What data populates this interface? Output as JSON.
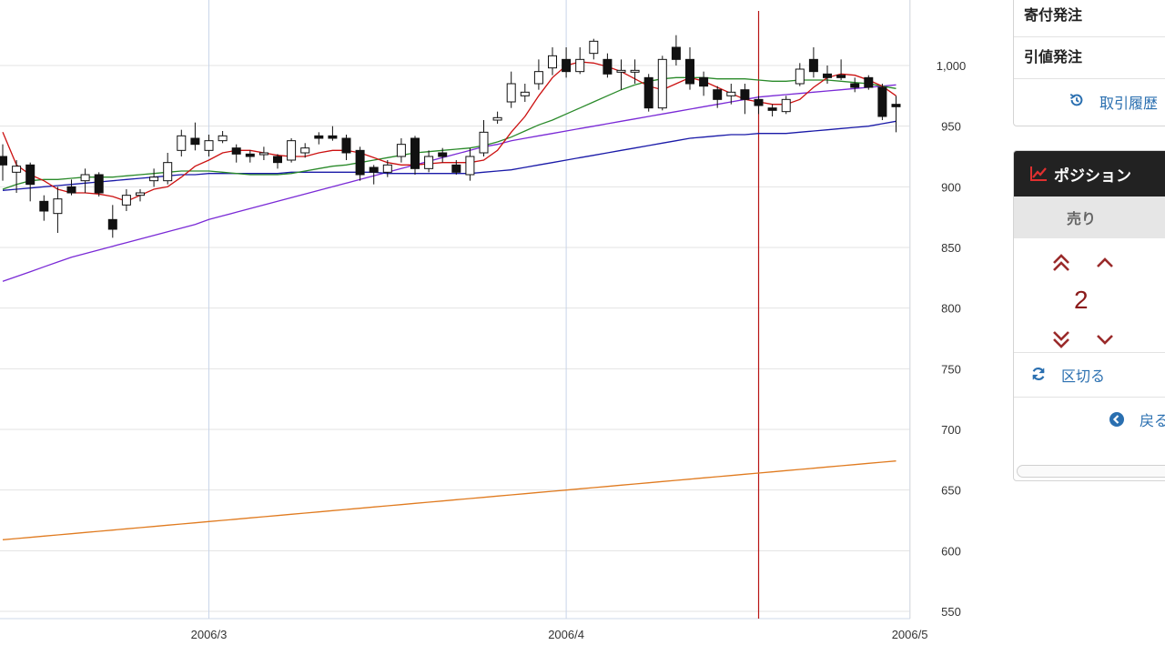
{
  "chart_data": {
    "type": "candlestick",
    "x_tick_labels": [
      "2006/3",
      "2006/4",
      "2006/5"
    ],
    "x_tick_index": [
      15,
      41,
      66
    ],
    "y_ticks": [
      550,
      600,
      650,
      700,
      750,
      800,
      850,
      900,
      950,
      "1,000"
    ],
    "ylim": [
      545,
      1050
    ],
    "grid": true,
    "colors": {
      "ma_short": "#cc1111",
      "ma_mid": "#2a8a2a",
      "ma_long": "#1a1aa8",
      "ma_longer": "#7a2ad6",
      "ma_longest": "#e07b20",
      "cursor_line": "#b81414"
    },
    "cursor_index": 55,
    "candles": [
      [
        925,
        918,
        935,
        905
      ],
      [
        912,
        917,
        922,
        895
      ],
      [
        918,
        902,
        920,
        888
      ],
      [
        888,
        880,
        893,
        872
      ],
      [
        878,
        890,
        900,
        862
      ],
      [
        900,
        895,
        906,
        893
      ],
      [
        905,
        910,
        915,
        895
      ],
      [
        910,
        895,
        912,
        892
      ],
      [
        873,
        865,
        885,
        858
      ],
      [
        885,
        893,
        898,
        880
      ],
      [
        893,
        895,
        898,
        888
      ],
      [
        905,
        908,
        915,
        900
      ],
      [
        905,
        920,
        928,
        902
      ],
      [
        930,
        942,
        947,
        925
      ],
      [
        940,
        935,
        953,
        930
      ],
      [
        930,
        938,
        943,
        925
      ],
      [
        938,
        942,
        946,
        936
      ],
      [
        932,
        927,
        935,
        920
      ],
      [
        927,
        925,
        930,
        920
      ],
      [
        927,
        928,
        933,
        922
      ],
      [
        925,
        920,
        927,
        915
      ],
      [
        922,
        938,
        940,
        920
      ],
      [
        928,
        932,
        936,
        924
      ],
      [
        942,
        940,
        945,
        935
      ],
      [
        942,
        940,
        950,
        938
      ],
      [
        940,
        928,
        943,
        922
      ],
      [
        930,
        910,
        933,
        905
      ],
      [
        916,
        912,
        918,
        902
      ],
      [
        912,
        918,
        922,
        908
      ],
      [
        925,
        935,
        940,
        920
      ],
      [
        940,
        915,
        942,
        910
      ],
      [
        915,
        925,
        930,
        912
      ],
      [
        928,
        925,
        932,
        920
      ],
      [
        918,
        912,
        922,
        910
      ],
      [
        910,
        925,
        932,
        905
      ],
      [
        928,
        945,
        955,
        925
      ],
      [
        955,
        957,
        962,
        952
      ],
      [
        970,
        985,
        995,
        965
      ],
      [
        975,
        978,
        985,
        970
      ],
      [
        985,
        995,
        1005,
        980
      ],
      [
        998,
        1008,
        1015,
        992
      ],
      [
        1005,
        995,
        1015,
        990
      ],
      [
        995,
        1005,
        1015,
        993
      ],
      [
        1010,
        1020,
        1022,
        1005
      ],
      [
        1005,
        993,
        1010,
        990
      ],
      [
        996,
        996,
        1005,
        980
      ],
      [
        996,
        996,
        1005,
        985
      ],
      [
        990,
        965,
        993,
        962
      ],
      [
        965,
        1005,
        1008,
        963
      ],
      [
        1015,
        1005,
        1025,
        1000
      ],
      [
        1005,
        985,
        1015,
        980
      ],
      [
        990,
        983,
        995,
        975
      ],
      [
        980,
        972,
        983,
        965
      ],
      [
        975,
        978,
        985,
        968
      ],
      [
        980,
        972,
        985,
        960
      ],
      [
        972,
        967,
        975,
        960
      ],
      [
        965,
        963,
        968,
        958
      ],
      [
        962,
        972,
        975,
        960
      ],
      [
        985,
        997,
        1002,
        983
      ],
      [
        1005,
        995,
        1015,
        990
      ],
      [
        993,
        990,
        1000,
        985
      ],
      [
        992,
        990,
        1005,
        988
      ],
      [
        985,
        982,
        990,
        978
      ],
      [
        990,
        982,
        992,
        980
      ],
      [
        982,
        958,
        985,
        955
      ],
      [
        968,
        966,
        975,
        945
      ]
    ],
    "series": [
      {
        "values": [
          945,
          918,
          910,
          905,
          898,
          895,
          895,
          894,
          892,
          888,
          893,
          898,
          900,
          908,
          917,
          922,
          928,
          930,
          930,
          928,
          926,
          925,
          925,
          928,
          930,
          930,
          928,
          924,
          920,
          918,
          918,
          919,
          920,
          920,
          920,
          922,
          930,
          945,
          958,
          975,
          990,
          1000,
          1003,
          1002,
          999,
          995,
          989,
          983,
          980,
          985,
          990,
          987,
          982,
          977,
          972,
          970,
          968,
          968,
          972,
          982,
          990,
          993,
          992,
          988,
          983,
          975
        ]
      },
      {
        "values": [
          898,
          902,
          905,
          906,
          906,
          907,
          908,
          908,
          908,
          909,
          910,
          911,
          912,
          913,
          913,
          913,
          912,
          911,
          910,
          910,
          910,
          911,
          913,
          915,
          917,
          918,
          920,
          922,
          924,
          926,
          928,
          929,
          930,
          931,
          932,
          934,
          937,
          941,
          946,
          951,
          955,
          960,
          965,
          970,
          975,
          980,
          984,
          987,
          989,
          990,
          990,
          990,
          989,
          989,
          989,
          988,
          987,
          987,
          988,
          988,
          988,
          987,
          986,
          985,
          983,
          981
        ]
      },
      {
        "values": [
          897,
          898,
          899,
          900,
          901,
          902,
          903,
          904,
          905,
          906,
          907,
          908,
          909,
          910,
          910,
          911,
          911,
          911,
          911,
          911,
          911,
          912,
          912,
          912,
          912,
          912,
          912,
          912,
          911,
          911,
          911,
          911,
          911,
          911,
          911,
          912,
          913,
          914,
          916,
          918,
          920,
          922,
          924,
          926,
          928,
          930,
          932,
          934,
          936,
          938,
          940,
          941,
          942,
          943,
          943,
          944,
          944,
          944,
          945,
          946,
          947,
          948,
          949,
          950,
          952,
          954
        ]
      },
      {
        "values": [
          822,
          826,
          830,
          834,
          838,
          842,
          845,
          848,
          851,
          854,
          857,
          860,
          863,
          866,
          869,
          873,
          876,
          879,
          882,
          885,
          888,
          891,
          894,
          897,
          900,
          903,
          906,
          909,
          912,
          915,
          918,
          921,
          924,
          927,
          930,
          933,
          935,
          938,
          940,
          942,
          944,
          946,
          948,
          950,
          952,
          954,
          956,
          958,
          960,
          962,
          964,
          966,
          968,
          970,
          972,
          974,
          975,
          976,
          977,
          978,
          979,
          980,
          981,
          982,
          983,
          984
        ]
      },
      {
        "values": [
          609,
          610,
          611,
          612,
          613,
          614,
          615,
          616,
          617,
          618,
          619,
          620,
          621,
          622,
          623,
          624,
          625,
          626,
          627,
          628,
          629,
          630,
          631,
          632,
          633,
          634,
          635,
          636,
          637,
          638,
          639,
          640,
          641,
          642,
          643,
          644,
          645,
          646,
          647,
          648,
          649,
          650,
          651,
          652,
          653,
          654,
          655,
          656,
          657,
          658,
          659,
          660,
          661,
          662,
          663,
          664,
          665,
          666,
          667,
          668,
          669,
          670,
          671,
          672,
          673,
          674
        ]
      }
    ]
  },
  "panel": {
    "order_market": "寄付発注",
    "order_limit": "引値発注",
    "trade_history": "取引履歴",
    "position_title": "ポジション",
    "sell_tab": "売り",
    "quantity": "2",
    "split": "区切る",
    "back": "戻る"
  }
}
